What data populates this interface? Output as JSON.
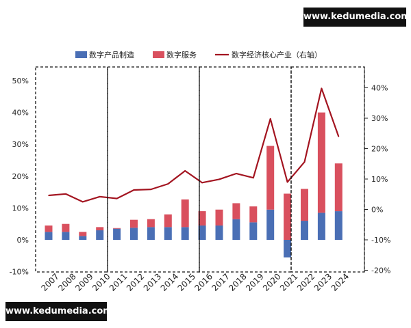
{
  "watermark": {
    "top": "www.kedumedia.com",
    "bottom": "www.kedumedia.com"
  },
  "chart_data": {
    "type": "bar",
    "title": "",
    "legend_position": "top",
    "categories": [
      "2007",
      "2008",
      "2009",
      "2010",
      "2011",
      "2012",
      "2013",
      "2014",
      "2015",
      "2016",
      "2017",
      "2018",
      "2019",
      "2020",
      "2021",
      "2022",
      "2023",
      "2024"
    ],
    "series": [
      {
        "name": "数字产品制造",
        "type": "stacked-bar",
        "axis": "left",
        "color": "#4a6fb5",
        "values": [
          2.5,
          2.5,
          1.2,
          3.0,
          3.5,
          3.8,
          4.0,
          4.0,
          4.0,
          4.5,
          4.5,
          6.5,
          5.5,
          9.5,
          -5.5,
          6.0,
          8.5,
          9.0
        ]
      },
      {
        "name": "数字服务",
        "type": "stacked-bar",
        "axis": "left",
        "color": "#d9505e",
        "values": [
          2.0,
          2.5,
          1.3,
          1.0,
          0.2,
          2.5,
          2.5,
          4.0,
          8.7,
          4.5,
          5.0,
          5.0,
          5.0,
          20.0,
          14.5,
          10.0,
          31.5,
          15.0
        ]
      },
      {
        "name": "数字经济核心产业（右轴）",
        "type": "line",
        "axis": "right",
        "color": "#a31420",
        "values": [
          4.6,
          5.1,
          2.5,
          4.2,
          3.6,
          6.4,
          6.6,
          8.4,
          12.7,
          8.8,
          9.9,
          11.8,
          10.4,
          29.8,
          9.0,
          15.6,
          39.8,
          24.0
        ]
      }
    ],
    "ylim_left": [
      -10,
      50
    ],
    "yticks_left": [
      "-10%",
      "0%",
      "10%",
      "20%",
      "30%",
      "40%",
      "50%"
    ],
    "ylim_right": [
      -20,
      45
    ],
    "yticks_right": [
      "-20%",
      "-10%",
      "0%",
      "10%",
      "20%",
      "30%",
      "40%"
    ],
    "period_groups": [
      [
        0,
        3
      ],
      [
        4,
        8
      ],
      [
        9,
        13
      ],
      [
        14,
        17
      ]
    ],
    "grid": false
  }
}
